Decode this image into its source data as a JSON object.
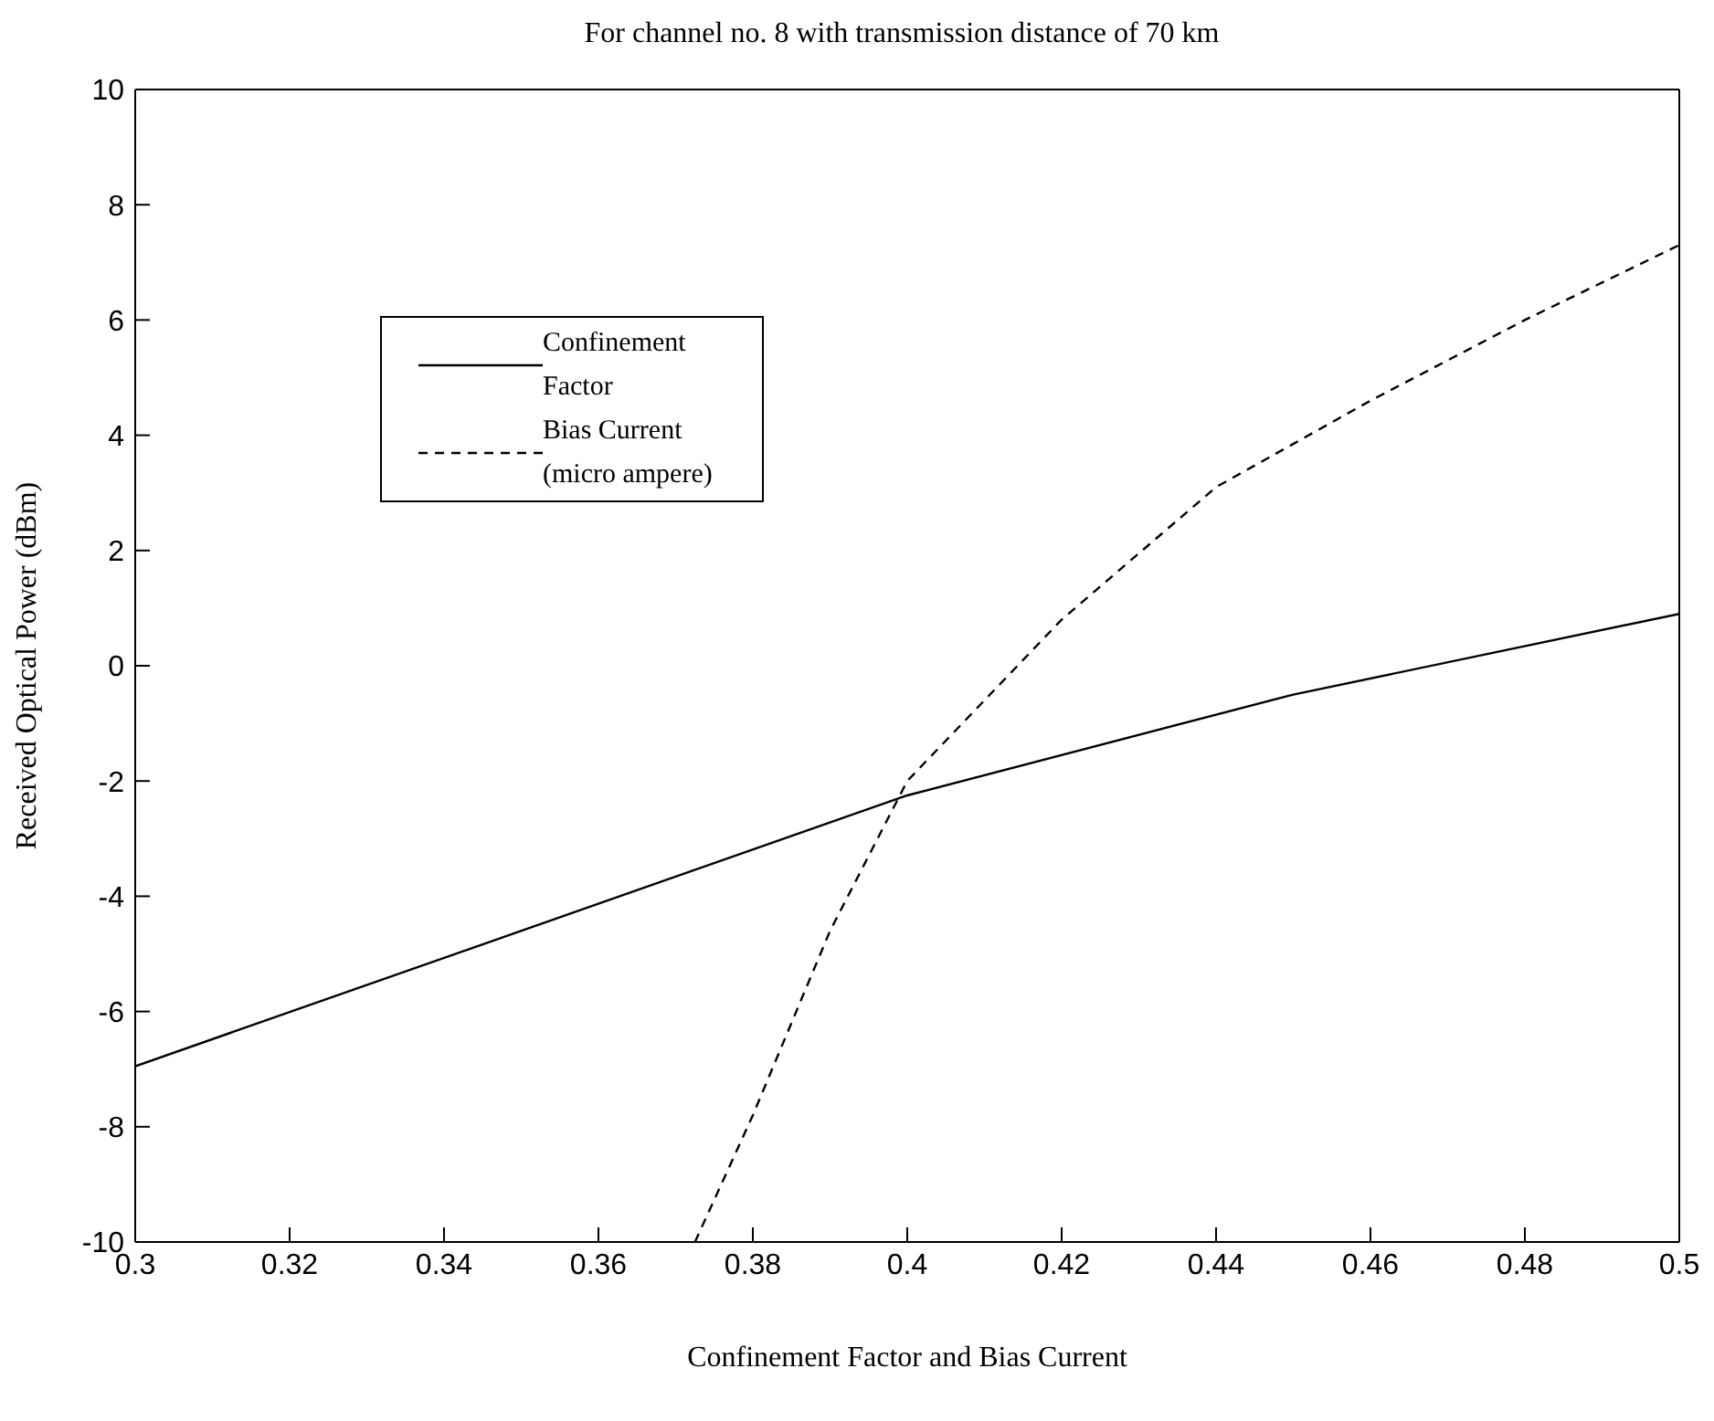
{
  "chart_data": {
    "type": "line",
    "title": "For channel no. 8 with transmission distance of 70 km",
    "xlabel": "Confinement Factor and Bias Current",
    "ylabel": "Received Optical Power (dBm)",
    "xlim": [
      0.3,
      0.5
    ],
    "xticks": [
      0.3,
      0.32,
      0.34,
      0.36,
      0.38,
      0.4,
      0.42,
      0.44,
      0.46,
      0.48,
      0.5
    ],
    "ylim": [
      -10,
      10
    ],
    "yticks": [
      -10,
      -8,
      -6,
      -4,
      -2,
      0,
      2,
      4,
      6,
      8,
      10
    ],
    "grid": false,
    "legend": "top left",
    "marker": "none",
    "series": [
      {
        "name": "Confinement Factor",
        "color": "#000000",
        "line_style": "solid",
        "x": [
          0.3,
          0.4,
          0.45,
          0.5
        ],
        "values": [
          -6.95,
          -2.25,
          -0.5,
          0.9
        ]
      },
      {
        "name": "Bias Current (micro ampere)",
        "color": "#000000",
        "line_style": "dashed",
        "x": [
          0.3725,
          0.38,
          0.39,
          0.4,
          0.405,
          0.42,
          0.44,
          0.46,
          0.48,
          0.5
        ],
        "values": [
          -10,
          -7.8,
          -4.6,
          -2.0,
          -1.3,
          0.8,
          3.1,
          4.6,
          6.0,
          7.3
        ]
      }
    ]
  }
}
